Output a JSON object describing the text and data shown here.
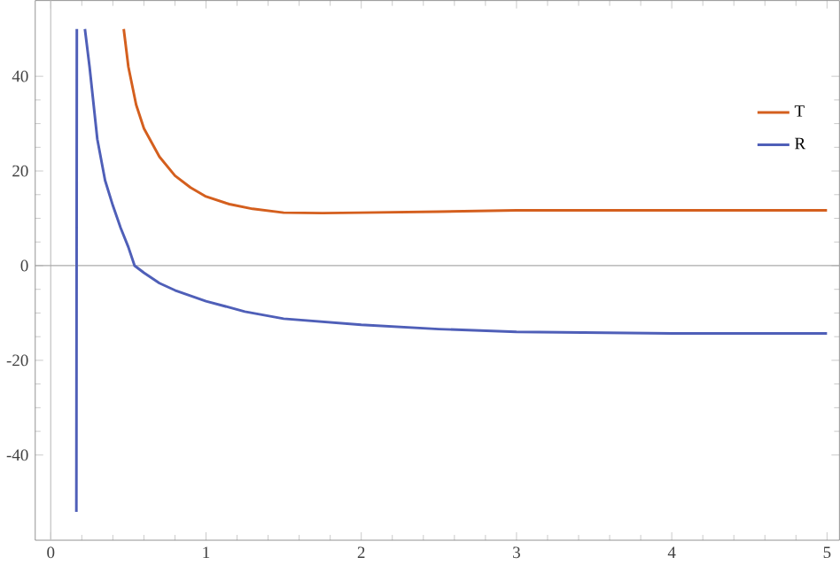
{
  "chart_data": {
    "type": "line",
    "xlim": [
      -0.1,
      5.08
    ],
    "ylim": [
      -58,
      56
    ],
    "xticks": [
      0,
      1,
      2,
      3,
      4,
      5
    ],
    "yticks": [
      -40,
      -20,
      0,
      20,
      40
    ],
    "grid": false,
    "legend": "top right",
    "ref_lines": [
      {
        "axis": "y",
        "value": 0,
        "color": "#aaaaaa"
      },
      {
        "axis": "x",
        "value": 0,
        "color": "#c4c4c4"
      }
    ],
    "series": [
      {
        "name": "T",
        "color": "#d45f1e",
        "x": [
          0.47,
          0.5,
          0.55,
          0.6,
          0.7,
          0.8,
          0.9,
          1.0,
          1.15,
          1.3,
          1.5,
          1.75,
          2.0,
          2.5,
          3.0,
          4.0,
          5.0
        ],
        "values": [
          50,
          42,
          34,
          29,
          23,
          19,
          16.5,
          14.6,
          13,
          12,
          11.2,
          11.1,
          11.2,
          11.4,
          11.7,
          11.7,
          11.7
        ]
      },
      {
        "name": "R",
        "color": "#4f5fb8",
        "x": [
          0.165,
          0.168,
          null,
          0.22,
          0.25,
          0.3,
          0.35,
          0.4,
          0.45,
          0.5,
          0.54,
          0.6,
          0.7,
          0.8,
          1.0,
          1.25,
          1.5,
          2.0,
          2.5,
          3.0,
          4.0,
          5.0
        ],
        "values": [
          -52,
          50,
          null,
          50,
          42,
          26.7,
          18,
          12.7,
          8,
          3.9,
          0,
          -1.5,
          -3.7,
          -5.2,
          -7.5,
          -9.7,
          -11.2,
          -12.5,
          -13.4,
          -14,
          -14.3,
          -14.3
        ]
      }
    ]
  }
}
